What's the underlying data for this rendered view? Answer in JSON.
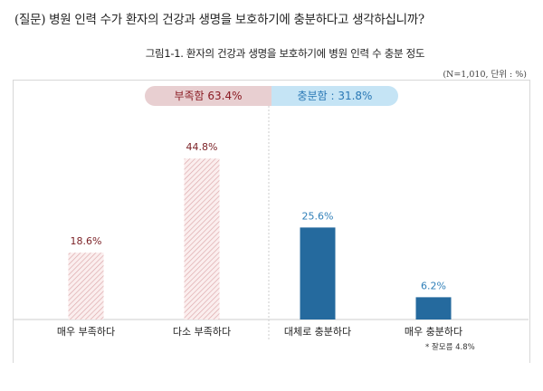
{
  "question": "(질문) 병원 인력 수가 환자의 건강과 생명을 보호하기에 충분하다고 생각하십니까?",
  "note": "(N=1,010, 단위 : %)",
  "groups": {
    "insufficient": "부족함 63.4%",
    "sufficient": "충분함 : 31.8%"
  },
  "footnote": "* 잘모름 4.8%",
  "chart_data": {
    "type": "bar",
    "title": "그림1-1. 환자의 건강과 생명을 보호하기에 병원 인력 수 충분 정도",
    "categories": [
      "매우 부족하다",
      "다소 부족하다",
      "대체로 충분하다",
      "매우 충분하다"
    ],
    "values": [
      18.6,
      44.8,
      25.6,
      6.2
    ],
    "data_labels": [
      "18.6%",
      "44.8%",
      "25.6%",
      "6.2%"
    ],
    "unit": "%",
    "colors": [
      "#f3d5d5",
      "#f3d5d5",
      "#256a9e",
      "#256a9e"
    ],
    "label_colors": [
      "#7a1f24",
      "#7a1f24",
      "#2f7fb8",
      "#2f7fb8"
    ],
    "grid": false
  }
}
